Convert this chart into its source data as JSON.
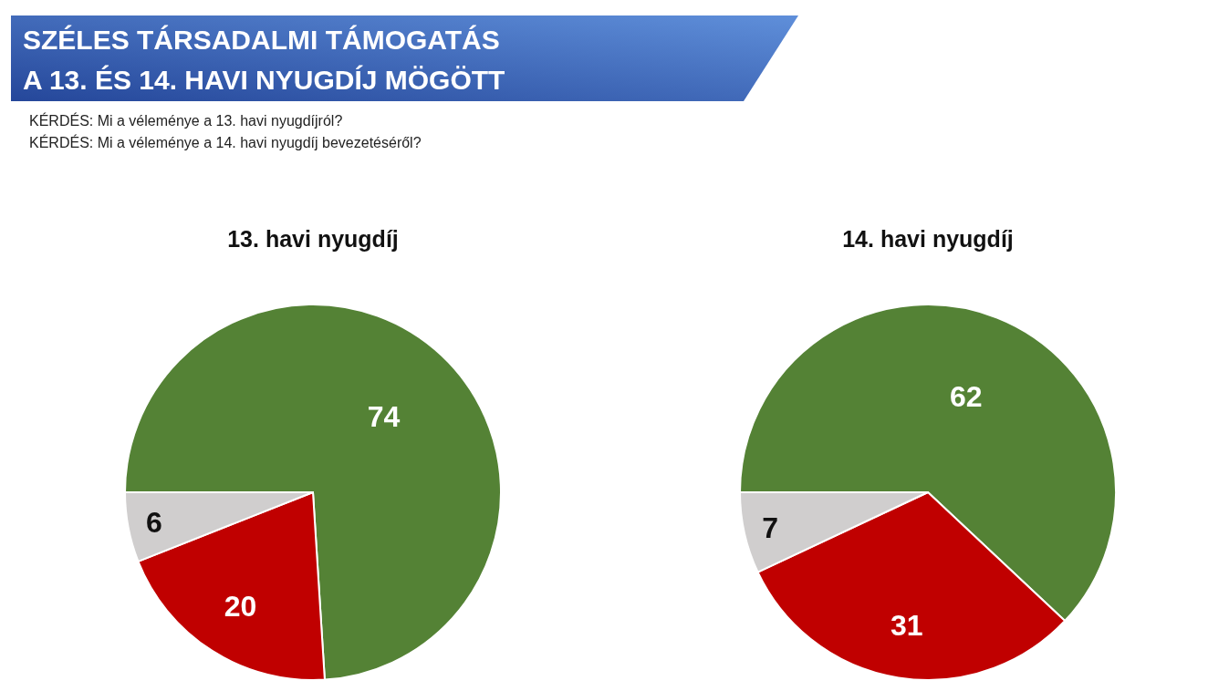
{
  "chart_data": [
    {
      "type": "pie",
      "title": "13. havi nyugdíj",
      "categories": [
        null,
        null,
        null
      ],
      "values": [
        74,
        20,
        6
      ],
      "colors": [
        "#548235",
        "#c00000",
        "#d0cece"
      ],
      "data_labels": true,
      "annotations": [
        "SZÉLES TÁRSADALMI TÁMOGATÁS\nA 13. ÉS 14. HAVI NYUGDÍJ MÖGÖTT",
        "KÉRDÉS: Mi a véleménye a 13. havi nyugdíjról?"
      ]
    },
    {
      "type": "pie",
      "title": "14. havi nyugdíj",
      "categories": [
        null,
        null,
        null
      ],
      "values": [
        62,
        31,
        7
      ],
      "colors": [
        "#548235",
        "#c00000",
        "#d0cece"
      ],
      "data_labels": true,
      "annotations": [
        "KÉRDÉS: Mi a véleménye a 14. havi nyugdíj bevezetéséről?"
      ]
    }
  ]
}
